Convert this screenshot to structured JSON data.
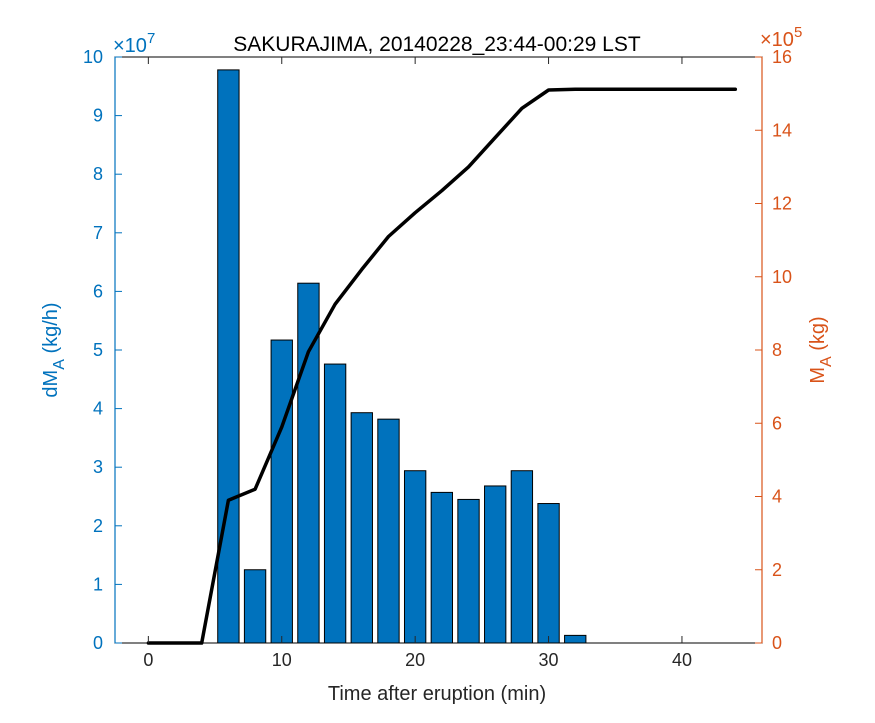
{
  "colors": {
    "left_axis": "#0072BD",
    "right_axis": "#D95319",
    "bar_fill": "#0072BD",
    "line": "#000000",
    "frame": "#000000"
  },
  "chart_data": {
    "type": "bar",
    "title": "SAKURAJIMA, 20140228_23:44-00:29 LST",
    "xlabel": "Time after eruption (min)",
    "ylabel_left": "dM",
    "ylabel_left_sub": "A",
    "ylabel_left_unit": " (kg/h)",
    "ylabel_right": "M",
    "ylabel_right_sub": "A",
    "ylabel_right_unit": " (kg)",
    "xlim": [
      -2.5,
      46
    ],
    "xticks": [
      0,
      10,
      20,
      30,
      40
    ],
    "ylim_left": [
      0,
      10
    ],
    "yticks_left": [
      0,
      1,
      2,
      3,
      4,
      5,
      6,
      7,
      8,
      9,
      10
    ],
    "left_exponent_prefix": "×10",
    "left_exponent": "7",
    "ylim_right": [
      0,
      16
    ],
    "yticks_right": [
      0,
      2,
      4,
      6,
      8,
      10,
      12,
      14,
      16
    ],
    "right_exponent_prefix": "×10",
    "right_exponent": "5",
    "bars": {
      "name": "dM_A",
      "axis": "left",
      "bar_width": 1.6,
      "x": [
        6,
        8,
        10,
        12,
        14,
        16,
        18,
        20,
        22,
        24,
        26,
        28,
        30,
        32
      ],
      "values": [
        9.78,
        1.25,
        5.17,
        6.14,
        4.76,
        3.93,
        3.82,
        2.94,
        2.57,
        2.45,
        2.68,
        2.94,
        2.38,
        0.13
      ]
    },
    "line": {
      "name": "M_A",
      "axis": "right",
      "x": [
        0,
        4,
        6,
        8,
        10,
        12,
        14,
        16,
        18,
        20,
        22,
        24,
        26,
        28,
        30,
        32,
        34,
        36,
        38,
        40,
        42,
        44
      ],
      "values": [
        0,
        0,
        3.9,
        4.2,
        5.9,
        7.95,
        9.25,
        10.2,
        11.1,
        11.75,
        12.35,
        13.0,
        13.8,
        14.6,
        15.1,
        15.12,
        15.12,
        15.12,
        15.12,
        15.12,
        15.12,
        15.12
      ]
    },
    "grid": false
  }
}
